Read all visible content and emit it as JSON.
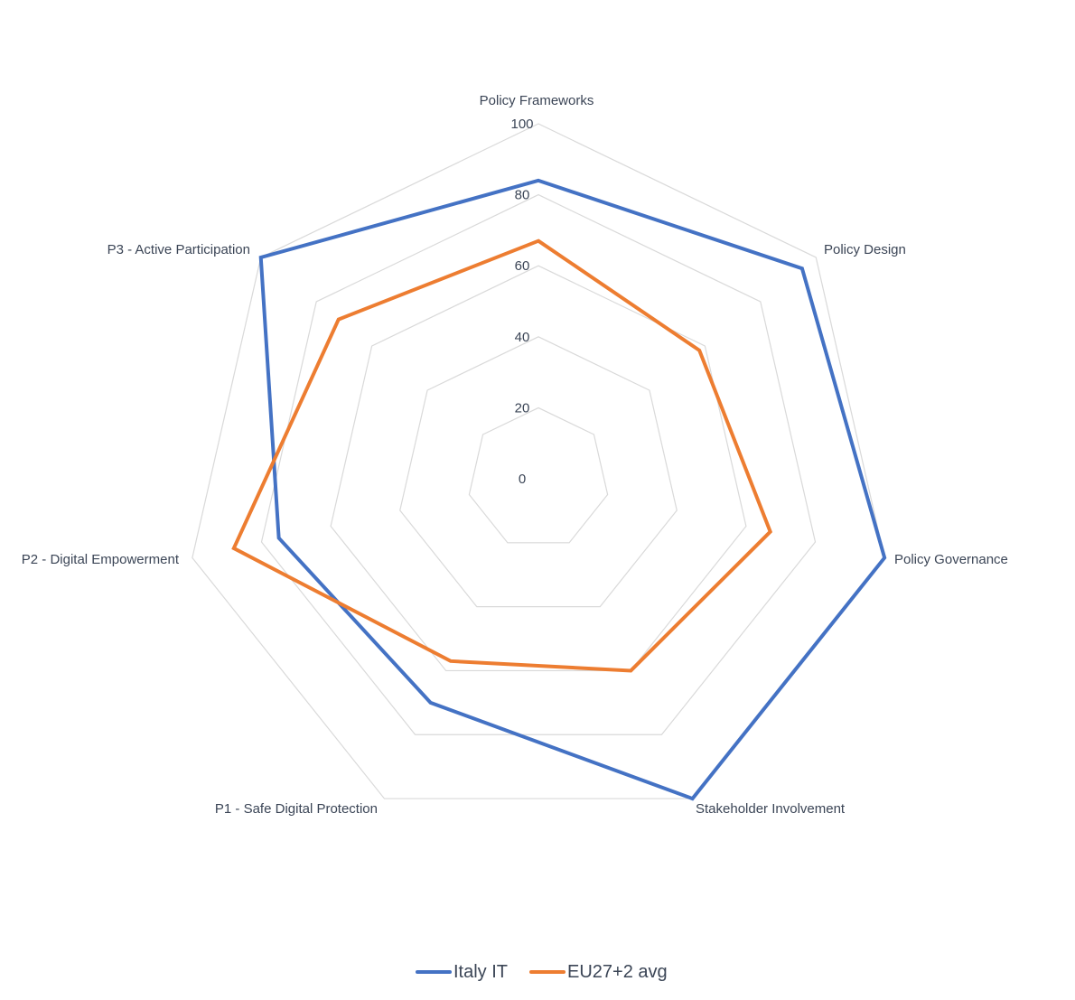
{
  "chart_data": {
    "type": "radar",
    "title": "",
    "categories": [
      "Policy Frameworks",
      "Policy Design",
      "Policy Governance",
      "Stakeholder Involvement",
      "P1 - Safe Digital Protection",
      "P2 - Digital Empowerment",
      "P3 - Active Participation"
    ],
    "ticks": [
      "0",
      "20",
      "40",
      "60",
      "80",
      "100"
    ],
    "range": [
      0,
      100
    ],
    "series": [
      {
        "name": "Italy IT",
        "color": "#4472c4",
        "values": [
          84,
          95,
          100,
          100,
          70,
          75,
          100
        ]
      },
      {
        "name": "EU27+2 avg",
        "color": "#ed7d31",
        "values": [
          67,
          58,
          67,
          60,
          57,
          88,
          72
        ]
      }
    ],
    "grid_color": "#d9d9d9",
    "legend_position": "bottom"
  }
}
